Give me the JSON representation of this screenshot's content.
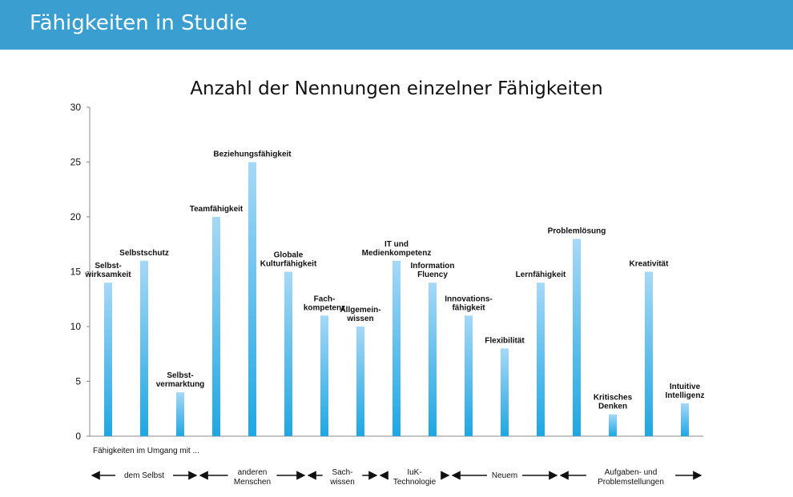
{
  "header": {
    "title": "Fähigkeiten in Studie"
  },
  "colors": {
    "header_bg": "#3a9fd0",
    "bar_top": "#a6d8f7",
    "bar_bottom": "#1ea7e3",
    "axis": "#8a8a8a",
    "text": "#111111"
  },
  "chart_data": {
    "type": "bar",
    "title": "Anzahl der Nennungen einzelner Fähigkeiten",
    "xlabel": "Fähigkeiten im Umgang mit ...",
    "ylabel": "",
    "ylim": [
      0,
      30
    ],
    "yticks": [
      0,
      5,
      10,
      15,
      20,
      25,
      30
    ],
    "grid": false,
    "categories": [
      "Selbst-\nwirksamkeit",
      "Selbstschutz",
      "Selbst-\nvermarktung",
      "Teamfähigkeit",
      "Beziehungsfähigkeit",
      "Globale\nKulturfähigkeit",
      "Fach-\nkompetenz",
      "Allgemein-\nwissen",
      "IT und\nMedienkompetenz",
      "Information\nFluency",
      "Innovations-\nfähigkeit",
      "Flexibilität",
      "Lernfähigkeit",
      "Problemlösung",
      "Kritisches\nDenken",
      "Kreativität",
      "Intuitive\nIntelligenz"
    ],
    "values": [
      14,
      16,
      4,
      20,
      25,
      15,
      11,
      10,
      16,
      14,
      11,
      8,
      14,
      18,
      2,
      15,
      3
    ],
    "groups": [
      {
        "label": "dem Selbst",
        "from": 0,
        "to": 2
      },
      {
        "label": "anderen\nMenschen",
        "from": 3,
        "to": 5
      },
      {
        "label": "Sach-\nwissen",
        "from": 6,
        "to": 7
      },
      {
        "label": "IuK-\nTechnologie",
        "from": 8,
        "to": 9
      },
      {
        "label": "Neuem",
        "from": 10,
        "to": 12
      },
      {
        "label": "Aufgaben- und\nProblemstellungen",
        "from": 13,
        "to": 16
      }
    ]
  }
}
